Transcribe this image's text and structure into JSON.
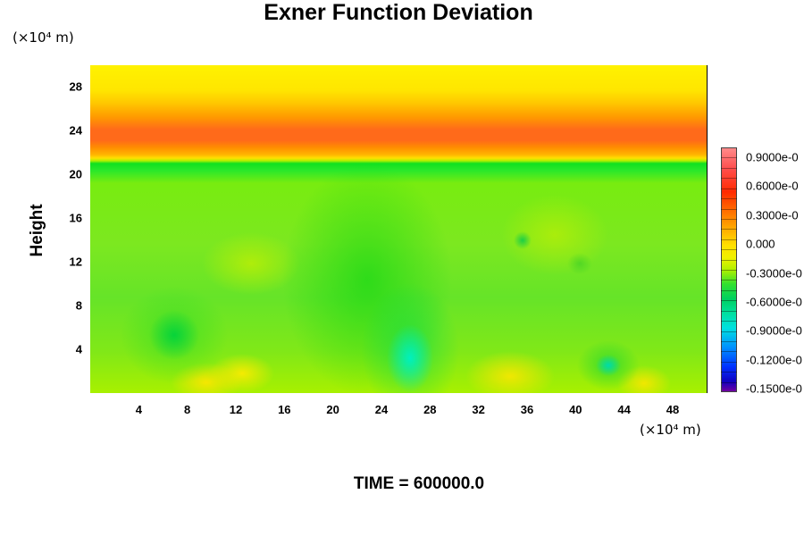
{
  "chart_data": {
    "type": "heatmap",
    "title": "Exner Function Deviation",
    "ylabel": "Height",
    "x_unit": "(×10⁴ m)",
    "y_unit": "(×10⁴ m)",
    "x_ticks": [
      "4",
      "8",
      "12",
      "16",
      "20",
      "24",
      "28",
      "32",
      "36",
      "40",
      "44",
      "48"
    ],
    "y_ticks": [
      "4",
      "8",
      "12",
      "16",
      "20",
      "24",
      "28"
    ],
    "xlim": [
      0,
      50.8
    ],
    "ylim": [
      0,
      30
    ],
    "colorbar_labels": [
      "0.9000e-0",
      "0.6000e-0",
      "0.3000e-0",
      "0.000",
      "-0.3000e-0",
      "-0.6000e-0",
      "-0.9000e-0",
      "-0.1200e-0",
      "-0.1500e-0"
    ],
    "colorbar_range": [
      -0.15,
      0.09
    ],
    "legend": "right",
    "footer": "TIME = 600000.0",
    "colors": {
      "max": "#ff8a8a",
      "high": "#ff6a1a",
      "zero": "#b0f000",
      "low": "#00e0e0",
      "min": "#7000a0"
    }
  }
}
